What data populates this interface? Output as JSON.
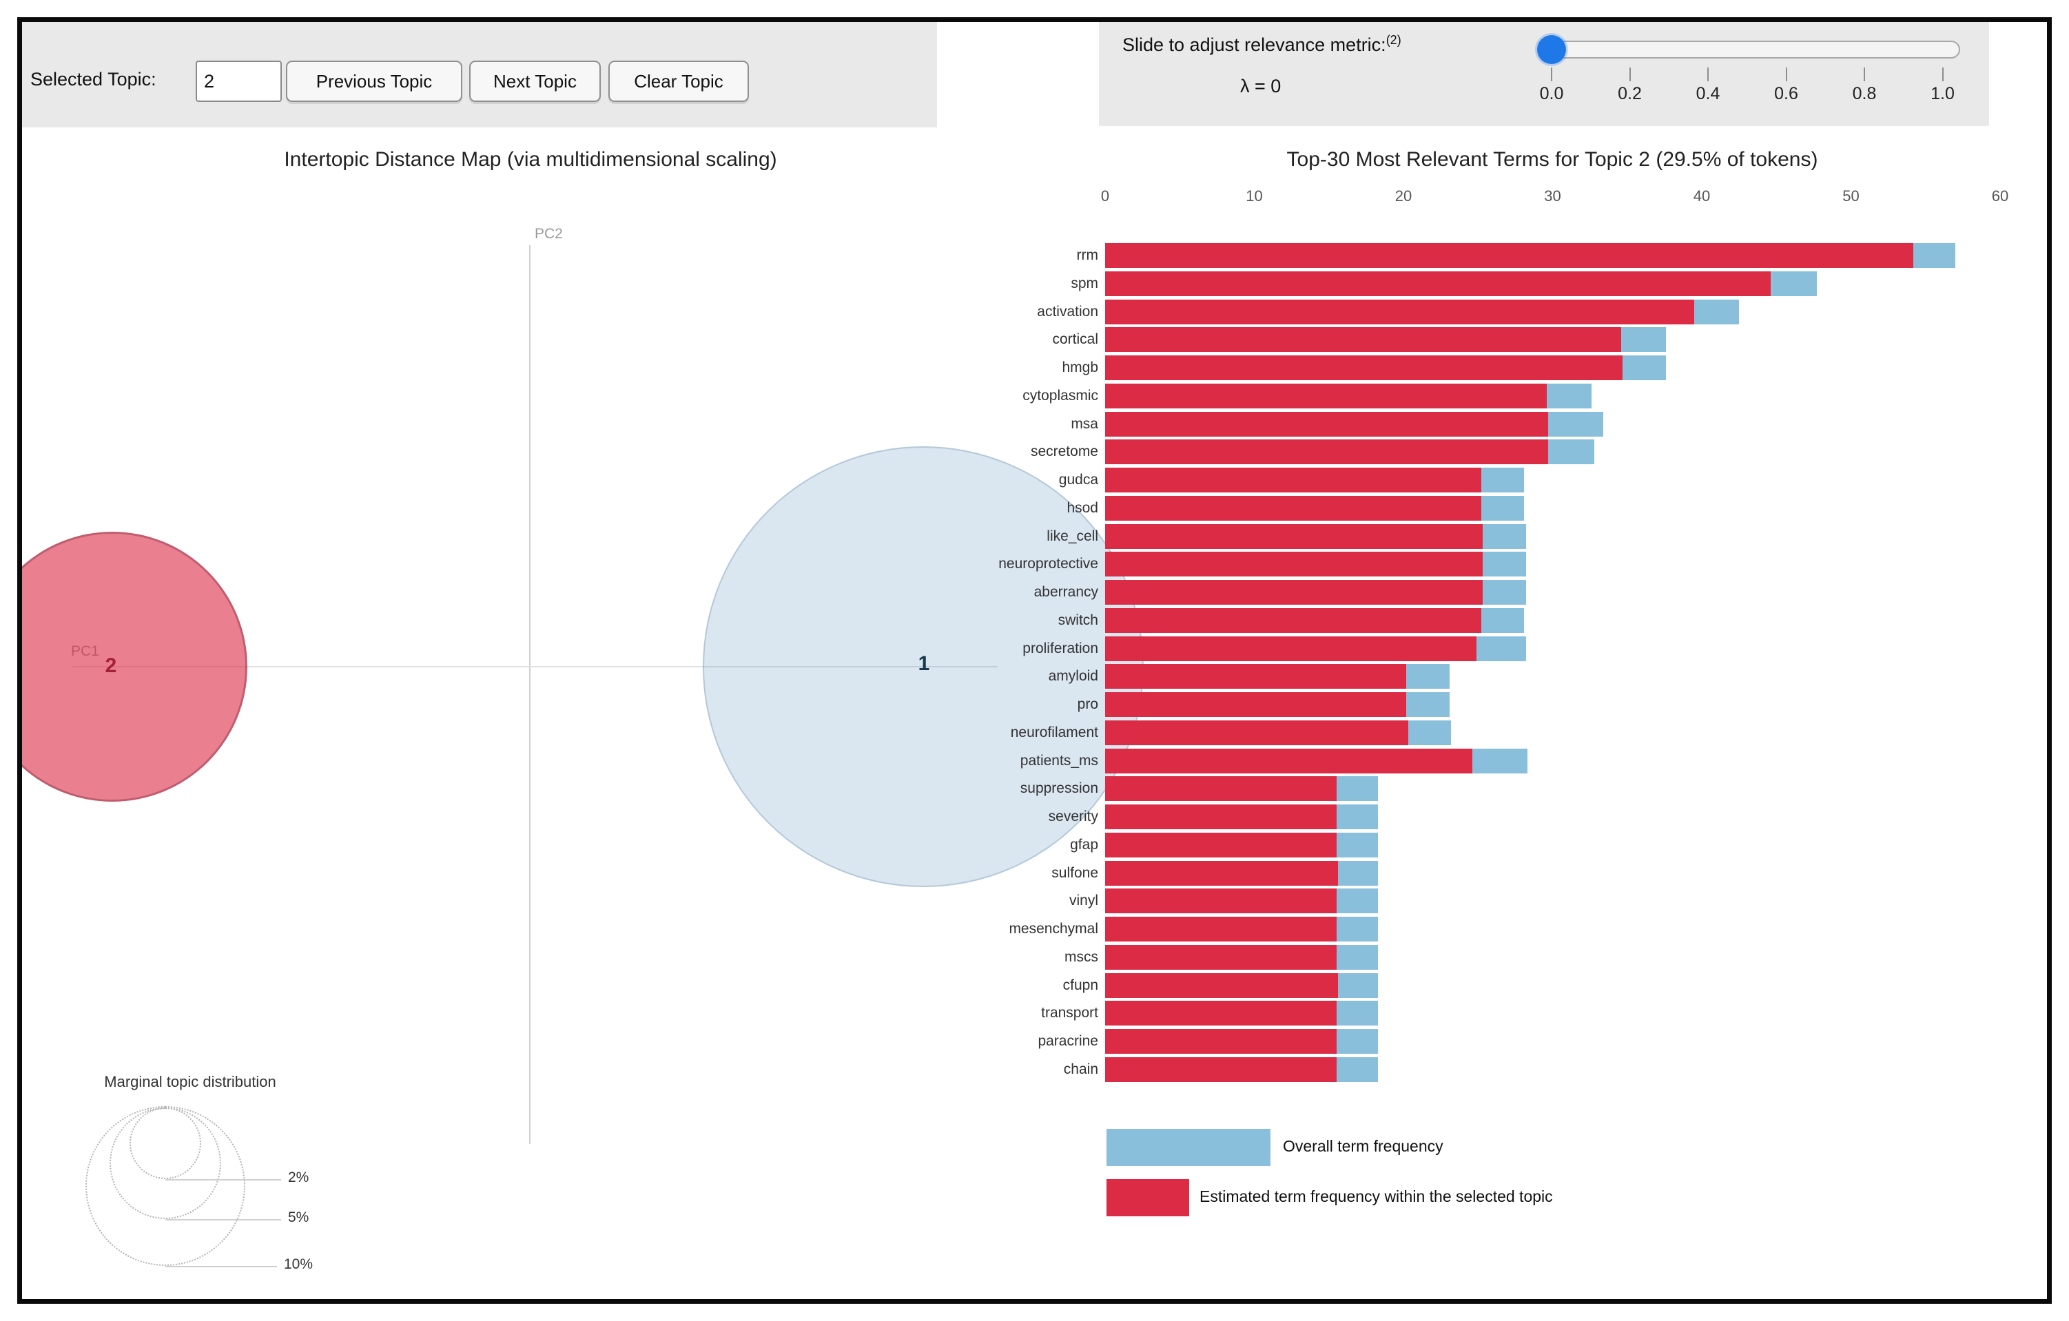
{
  "controls": {
    "selected_topic_label": "Selected Topic:",
    "selected_topic_value": "2",
    "previous_button": "Previous Topic",
    "next_button": "Next Topic",
    "clear_button": "Clear Topic"
  },
  "slider": {
    "label": "Slide to adjust relevance metric:",
    "footnote": "(2)",
    "lambda_text": "λ = 0",
    "value": "0.0",
    "ticks": [
      "0.0",
      "0.2",
      "0.4",
      "0.6",
      "0.8",
      "1.0"
    ]
  },
  "map": {
    "title": "Intertopic Distance Map (via multidimensional scaling)",
    "x_axis_label": "PC1",
    "y_axis_label": "PC2",
    "topics": [
      {
        "id": "1",
        "fill": "light-blue"
      },
      {
        "id": "2",
        "fill": "red",
        "selected": true
      }
    ],
    "marginal": {
      "title": "Marginal topic distribution",
      "labels": [
        "2%",
        "5%",
        "10%"
      ]
    }
  },
  "chart_data": {
    "type": "bar",
    "title": "Top-30 Most Relevant Terms for Topic 2 (29.5% of tokens)",
    "xlim": [
      0,
      60
    ],
    "x_ticks": [
      "0",
      "10",
      "20",
      "30",
      "40",
      "50",
      "60"
    ],
    "grid": false,
    "legend_position": "bottom",
    "categories": [
      "rrm",
      "spm",
      "activation",
      "cortical",
      "hmgb",
      "cytoplasmic",
      "msa",
      "secretome",
      "gudca",
      "hsod",
      "like_cell",
      "neuroprotective",
      "aberrancy",
      "switch",
      "proliferation",
      "amyloid",
      "pro",
      "neurofilament",
      "patients_ms",
      "suppression",
      "severity",
      "gfap",
      "sulfone",
      "vinyl",
      "mesenchymal",
      "mscs",
      "cfupn",
      "transport",
      "paracrine",
      "chain"
    ],
    "series": [
      {
        "name": "Overall term frequency",
        "color": "#8abfdc",
        "values": [
          57.0,
          47.7,
          42.5,
          37.6,
          37.6,
          32.6,
          33.4,
          32.8,
          28.1,
          28.1,
          28.2,
          28.2,
          28.2,
          28.1,
          28.2,
          23.1,
          23.1,
          23.2,
          28.3,
          18.3,
          18.3,
          18.3,
          18.3,
          18.3,
          18.3,
          18.3,
          18.3,
          18.3,
          18.3,
          18.3
        ]
      },
      {
        "name": "Estimated term frequency within the selected topic",
        "color": "#dc2b45",
        "values": [
          54.2,
          44.6,
          39.5,
          34.6,
          34.7,
          29.6,
          29.7,
          29.7,
          25.2,
          25.2,
          25.3,
          25.3,
          25.3,
          25.2,
          24.9,
          20.2,
          20.2,
          20.3,
          24.6,
          15.5,
          15.5,
          15.5,
          15.6,
          15.5,
          15.5,
          15.5,
          15.6,
          15.5,
          15.5,
          15.5
        ]
      }
    ]
  },
  "legend": {
    "overall": "Overall term frequency",
    "estimated": "Estimated term frequency within the selected topic"
  },
  "colors": {
    "topic_bar": "#dc2b45",
    "overall_bar": "#8abfdc",
    "selected_circle": "#dc2b45",
    "unselected_circle": "#d7e7f3",
    "slider_knob": "#1f78e8",
    "panel_gray": "#e9e9e9"
  }
}
